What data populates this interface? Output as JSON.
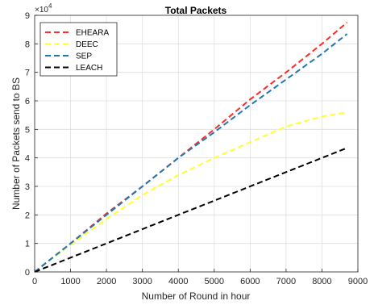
{
  "chart_data": {
    "type": "line",
    "title": "Total Packets",
    "xlabel": "Number of Round in hour",
    "ylabel": "Number of Packets send to BS",
    "y_multiplier_label": "×10",
    "y_multiplier_exp": "4",
    "xlim": [
      0,
      9000
    ],
    "ylim": [
      0,
      9
    ],
    "y_scale": 10000,
    "xticks": [
      0,
      1000,
      2000,
      3000,
      4000,
      5000,
      6000,
      7000,
      8000,
      9000
    ],
    "yticks": [
      0,
      1,
      2,
      3,
      4,
      5,
      6,
      7,
      8,
      9
    ],
    "grid": true,
    "legend_position": "top-left",
    "series": [
      {
        "name": "EHEARA",
        "color": "#ff2a2a",
        "x": [
          0,
          1000,
          2000,
          3000,
          4000,
          5000,
          6000,
          7000,
          8000,
          8700
        ],
        "y": [
          0,
          10000,
          20500,
          30000,
          40000,
          50000,
          60500,
          70000,
          80000,
          87500
        ]
      },
      {
        "name": "DEEC",
        "color": "#ffff33",
        "x": [
          0,
          1000,
          2000,
          3000,
          4000,
          5000,
          6000,
          7000,
          8000,
          8700
        ],
        "y": [
          0,
          9500,
          18500,
          27000,
          34000,
          40000,
          45500,
          51000,
          54500,
          56000
        ]
      },
      {
        "name": "SEP",
        "color": "#1f77b4",
        "x": [
          0,
          1000,
          2000,
          3000,
          4000,
          5000,
          6000,
          7000,
          8000,
          8700
        ],
        "y": [
          0,
          10000,
          20000,
          30000,
          40000,
          49000,
          58500,
          67500,
          76500,
          83500
        ]
      },
      {
        "name": "LEACH",
        "color": "#000000",
        "x": [
          0,
          1000,
          2000,
          3000,
          4000,
          5000,
          6000,
          7000,
          8000,
          8700
        ],
        "y": [
          0,
          5000,
          10000,
          15000,
          20000,
          25000,
          30000,
          35000,
          40000,
          43500
        ]
      }
    ]
  }
}
